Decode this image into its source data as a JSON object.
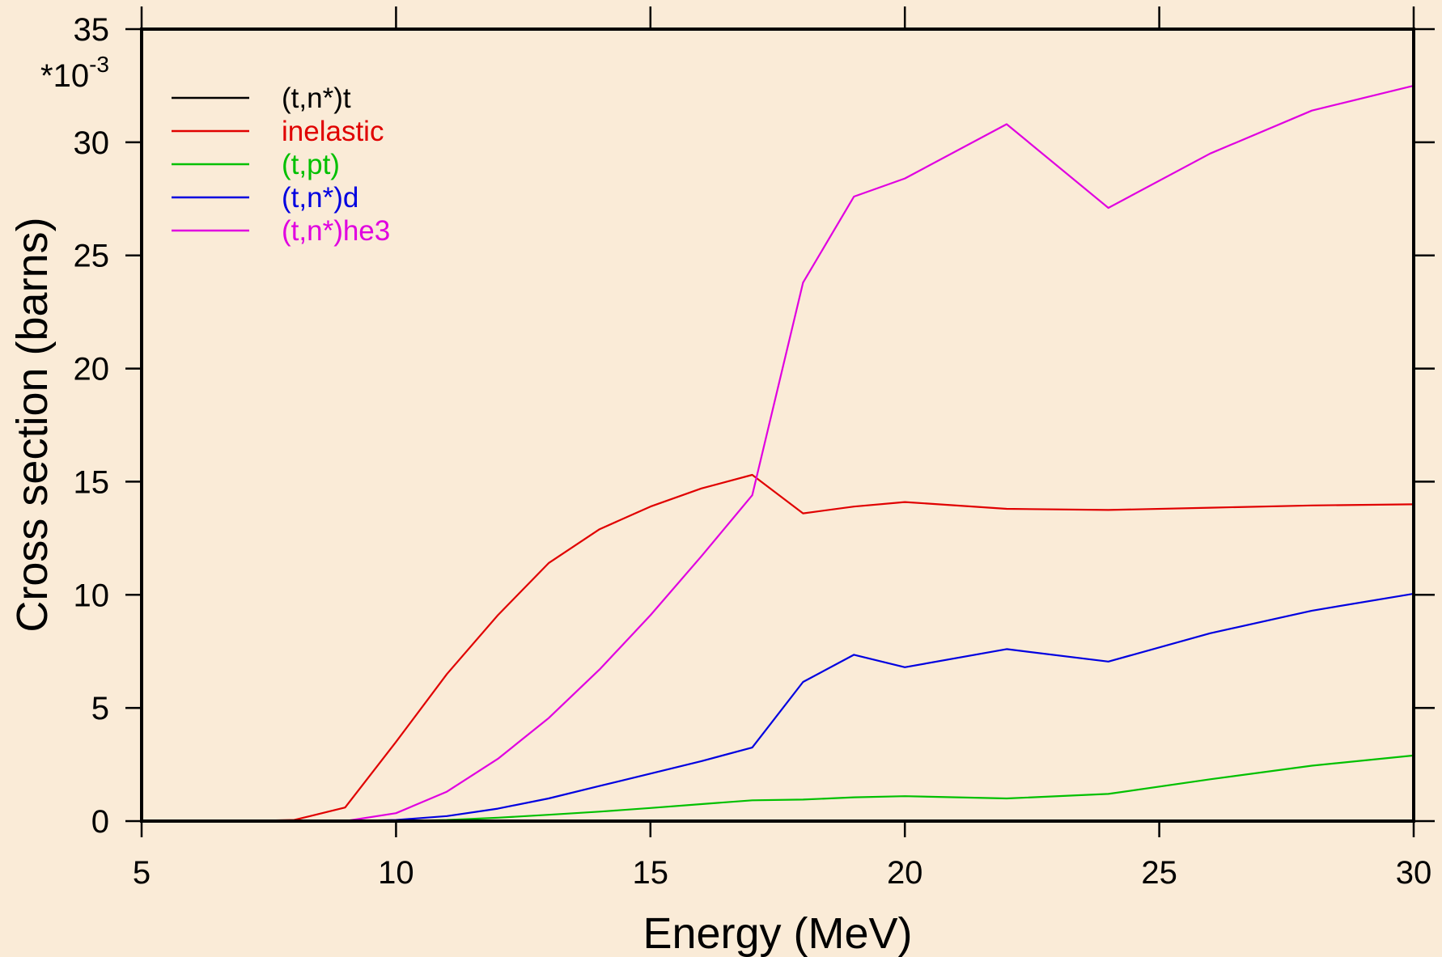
{
  "colors": {
    "page_background": "#FAEBD7",
    "plot_background": "#FAEBD7",
    "frame": "#000000"
  },
  "chart_data": {
    "type": "line",
    "xlabel": "Energy (MeV)",
    "ylabel": "Cross section (barns)",
    "y_multiplier_base": "*10",
    "y_multiplier_exp": "-3",
    "xlim": [
      5,
      30
    ],
    "ylim": [
      0,
      35
    ],
    "xticks": [
      5,
      10,
      15,
      20,
      25,
      30
    ],
    "yticks": [
      0,
      5,
      10,
      15,
      20,
      25,
      30,
      35
    ],
    "grid": false,
    "legend_position": "top-left",
    "x": [
      5.6,
      6.0,
      7.0,
      8.0,
      9.0,
      10.0,
      11.0,
      12.0,
      13.0,
      14.0,
      15.0,
      16.0,
      17.0,
      18.0,
      19.0,
      20.0,
      22.0,
      24.0,
      26.0,
      28.0,
      30.0
    ],
    "series": [
      {
        "name": "(t,n*)t",
        "color": "#000000",
        "values": [
          0,
          0,
          0,
          0,
          0,
          0,
          0,
          0,
          0,
          0,
          0,
          0,
          0,
          0,
          0,
          0,
          0,
          0,
          0,
          0,
          0
        ]
      },
      {
        "name": "inelastic",
        "color": "#E00000",
        "values": [
          0,
          0,
          0,
          0.05,
          0.6,
          3.5,
          6.5,
          9.1,
          11.4,
          12.9,
          13.9,
          14.7,
          15.3,
          13.6,
          13.9,
          14.1,
          13.8,
          13.75,
          13.85,
          13.95,
          14.0
        ]
      },
      {
        "name": "(t,pt)",
        "color": "#00C000",
        "values": [
          0,
          0,
          0,
          0,
          0,
          0,
          0.05,
          0.15,
          0.28,
          0.42,
          0.58,
          0.75,
          0.92,
          0.95,
          1.05,
          1.1,
          1.0,
          1.2,
          1.85,
          2.45,
          2.9
        ]
      },
      {
        "name": "(t,n*)d",
        "color": "#0000E0",
        "values": [
          0,
          0,
          0,
          0,
          0,
          0.05,
          0.22,
          0.55,
          1.0,
          1.55,
          2.1,
          2.65,
          3.25,
          6.15,
          7.35,
          6.8,
          7.6,
          7.05,
          8.3,
          9.3,
          10.05
        ]
      },
      {
        "name": "(t,n*)he3",
        "color": "#E000E0",
        "values": [
          0,
          0,
          0,
          0,
          0,
          0.35,
          1.3,
          2.75,
          4.55,
          6.7,
          9.1,
          11.7,
          14.4,
          23.8,
          27.6,
          28.4,
          30.8,
          27.1,
          29.5,
          31.4,
          32.5
        ]
      }
    ]
  }
}
